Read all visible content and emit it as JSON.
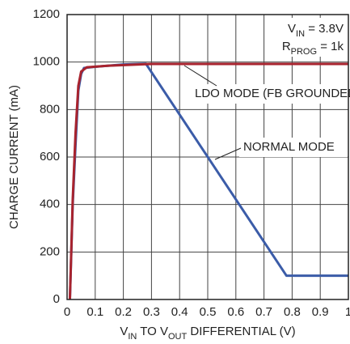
{
  "chart_data": {
    "type": "line",
    "xlabel": [
      {
        "text": "V"
      },
      {
        "text": "IN",
        "sub": true
      },
      {
        "text": " TO V"
      },
      {
        "text": "OUT",
        "sub": true
      },
      {
        "text": " DIFFERENTIAL (V)"
      }
    ],
    "ylabel": "CHARGE CURRENT (mA)",
    "annotations": [
      [
        {
          "text": "V"
        },
        {
          "text": "IN",
          "sub": true
        },
        {
          "text": " = 3.8V"
        }
      ],
      [
        {
          "text": "R"
        },
        {
          "text": "PROG",
          "sub": true
        },
        {
          "text": " = 1k"
        }
      ]
    ],
    "xlim": [
      0,
      1
    ],
    "xticks": [
      0,
      0.1,
      0.2,
      0.3,
      0.4,
      0.5,
      0.6,
      0.7,
      0.8,
      0.9,
      1
    ],
    "ylim": [
      0,
      1200
    ],
    "yticks": [
      0,
      200,
      400,
      600,
      800,
      1000,
      1200
    ],
    "grid": true,
    "series": [
      {
        "name": "NORMAL MODE",
        "color": "#3b5ca8",
        "x": [
          0.01,
          0.02,
          0.03,
          0.04,
          0.05,
          0.06,
          0.1,
          0.2,
          0.28,
          0.78,
          1.0
        ],
        "values": [
          0,
          400,
          650,
          880,
          950,
          975,
          980,
          990,
          993,
          100,
          100
        ]
      },
      {
        "name": "LDO MODE (FB GROUNDED)",
        "color": "#a8232e",
        "x": [
          0.01,
          0.02,
          0.03,
          0.04,
          0.05,
          0.07,
          0.15,
          0.3,
          1.0
        ],
        "values": [
          0,
          420,
          700,
          900,
          960,
          978,
          985,
          992,
          992
        ]
      }
    ]
  }
}
